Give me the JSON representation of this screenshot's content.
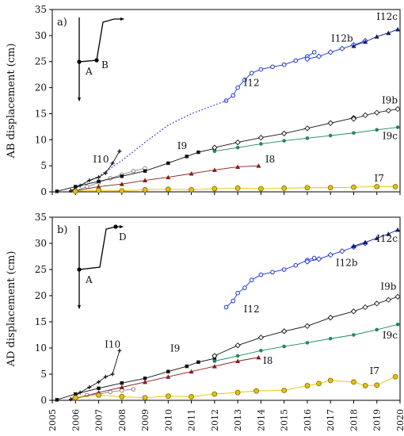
{
  "chart_data": [
    {
      "type": "scatter",
      "panel_label": "a)",
      "ylabel": "AB displacement (cm)",
      "xlim": [
        2005,
        2020
      ],
      "ylim": [
        0,
        35
      ],
      "yticks": [
        0,
        5,
        10,
        15,
        20,
        25,
        30,
        35
      ],
      "inset_labels": [
        "A",
        "B"
      ],
      "series": [
        {
          "name": "I12",
          "color": "#1a2fe0",
          "marker": "open-circle",
          "x": [
            2012.5,
            2012.8,
            2013.0,
            2013.3,
            2013.6,
            2014.0,
            2014.5,
            2015.0,
            2015.5,
            2016.0,
            2016.3
          ],
          "y": [
            17.5,
            18.5,
            20.0,
            21.5,
            22.8,
            23.5,
            24.0,
            24.4,
            25.2,
            26.0,
            26.8
          ]
        },
        {
          "name": "I12b",
          "color": "#1a2fe0",
          "marker": "open-diamond",
          "x": [
            2016.0,
            2016.5,
            2017.0,
            2017.5,
            2018.0,
            2018.5
          ],
          "y": [
            25.5,
            26.0,
            26.8,
            27.5,
            28.2,
            29.0
          ]
        },
        {
          "name": "I12c",
          "color": "#0e1a70",
          "marker": "triangle",
          "x": [
            2018.0,
            2018.5,
            2019.0,
            2019.5,
            2019.9
          ],
          "y": [
            28.0,
            28.8,
            29.8,
            30.5,
            31.2
          ]
        },
        {
          "name": "",
          "color": "#1a2fe0",
          "marker": "dotted",
          "x": [
            2006.0,
            2007.0,
            2008.0,
            2009.0,
            2010.0,
            2011.0,
            2012.5
          ],
          "y": [
            0.8,
            3.0,
            6.0,
            9.5,
            12.8,
            15.0,
            17.5
          ]
        },
        {
          "name": "I10",
          "color": "#111111",
          "marker": "plus",
          "x": [
            2005.8,
            2006.2,
            2006.6,
            2007.0,
            2007.3,
            2007.6,
            2007.9
          ],
          "y": [
            0.2,
            1.2,
            2.2,
            2.8,
            3.6,
            5.5,
            7.8
          ]
        },
        {
          "name": "",
          "color": "#888888",
          "marker": "open-circle",
          "x": [
            2006.0,
            2006.5,
            2007.0,
            2007.5,
            2008.0,
            2008.5,
            2009.0
          ],
          "y": [
            0.2,
            1.0,
            1.8,
            2.6,
            3.3,
            4.0,
            4.5
          ]
        },
        {
          "name": "I9",
          "color": "#111111",
          "marker": "square",
          "x": [
            2005.2,
            2006.0,
            2007.0,
            2008.0,
            2009.0,
            2010.0,
            2010.8,
            2011.3,
            2012.0
          ],
          "y": [
            0.1,
            1.0,
            2.0,
            3.0,
            4.0,
            5.5,
            6.8,
            7.6,
            8.3
          ]
        },
        {
          "name": "",
          "color": "#111111",
          "marker": "open-diamond",
          "x": [
            2012.0,
            2013.0,
            2014.0,
            2015.0,
            2016.0,
            2017.0,
            2018.0
          ],
          "y": [
            8.5,
            9.5,
            10.4,
            11.2,
            12.2,
            13.2,
            14.2
          ]
        },
        {
          "name": "I9b",
          "color": "#222222",
          "marker": "open-diamond",
          "x": [
            2018.0,
            2018.5,
            2019.0,
            2019.5,
            2019.9
          ],
          "y": [
            14.0,
            14.7,
            15.2,
            15.6,
            15.9
          ]
        },
        {
          "name": "I9c",
          "color": "#1e8a5c",
          "marker": "filled-circle",
          "x": [
            2012.0,
            2013.0,
            2014.0,
            2015.0,
            2016.0,
            2017.0,
            2018.0,
            2019.0,
            2019.9
          ],
          "y": [
            7.8,
            8.5,
            9.2,
            9.8,
            10.3,
            10.8,
            11.3,
            11.9,
            12.4
          ]
        },
        {
          "name": "I8",
          "color": "#8b1a1a",
          "marker": "triangle",
          "x": [
            2006.0,
            2007.0,
            2008.0,
            2009.0,
            2010.0,
            2011.0,
            2012.0,
            2013.0,
            2013.9
          ],
          "y": [
            0.2,
            1.0,
            1.5,
            2.2,
            2.8,
            3.5,
            4.2,
            4.8,
            5.0
          ]
        },
        {
          "name": "I7",
          "color": "#e8c000",
          "marker": "yellow-circle",
          "x": [
            2006.0,
            2007.0,
            2008.0,
            2009.0,
            2010.0,
            2011.0,
            2012.0,
            2013.0,
            2014.0,
            2015.0,
            2016.0,
            2017.0,
            2018.0,
            2019.0,
            2019.8
          ],
          "y": [
            0.1,
            0.3,
            0.2,
            0.4,
            0.5,
            0.4,
            0.6,
            0.7,
            0.6,
            0.7,
            0.8,
            0.8,
            0.9,
            1.0,
            1.0
          ]
        }
      ]
    },
    {
      "type": "scatter",
      "panel_label": "b)",
      "ylabel": "AD displacement (cm)",
      "xlim": [
        2005,
        2020
      ],
      "ylim": [
        0,
        35
      ],
      "xticks": [
        2005,
        2006,
        2007,
        2008,
        2009,
        2010,
        2011,
        2012,
        2013,
        2014,
        2015,
        2016,
        2017,
        2018,
        2019,
        2020
      ],
      "yticks": [
        0,
        5,
        10,
        15,
        20,
        25,
        30,
        35
      ],
      "inset_labels": [
        "A",
        "D"
      ],
      "series": [
        {
          "name": "I12",
          "color": "#1a2fe0",
          "marker": "open-circle",
          "x": [
            2012.5,
            2012.8,
            2013.0,
            2013.3,
            2013.6,
            2014.0,
            2014.5,
            2015.0,
            2015.5,
            2016.0,
            2016.3
          ],
          "y": [
            17.8,
            19.0,
            20.5,
            21.5,
            23.0,
            24.0,
            24.5,
            25.0,
            25.8,
            26.8,
            27.2
          ]
        },
        {
          "name": "I12b",
          "color": "#1a2fe0",
          "marker": "open-diamond",
          "x": [
            2016.0,
            2016.5,
            2017.0,
            2017.5,
            2018.0,
            2018.5
          ],
          "y": [
            26.5,
            27.0,
            27.8,
            28.5,
            29.3,
            30.0
          ]
        },
        {
          "name": "I12c",
          "color": "#0e1a70",
          "marker": "triangle",
          "x": [
            2018.0,
            2018.5,
            2019.0,
            2019.5,
            2019.9
          ],
          "y": [
            29.5,
            30.2,
            31.0,
            31.8,
            32.6
          ]
        },
        {
          "name": "I10",
          "color": "#111111",
          "marker": "plus",
          "x": [
            2005.8,
            2006.2,
            2006.6,
            2007.0,
            2007.3,
            2007.6,
            2007.9
          ],
          "y": [
            0.2,
            1.5,
            2.5,
            3.5,
            4.5,
            5.0,
            9.5
          ]
        },
        {
          "name": "",
          "color": "#888888",
          "marker": "open-circle",
          "x": [
            2006.0,
            2006.5,
            2007.0,
            2007.5,
            2008.0,
            2008.5
          ],
          "y": [
            0.5,
            1.0,
            1.2,
            1.6,
            1.9,
            2.1
          ]
        },
        {
          "name": "I9",
          "color": "#111111",
          "marker": "square",
          "x": [
            2005.2,
            2006.0,
            2007.0,
            2008.0,
            2009.0,
            2010.0,
            2010.8,
            2011.3,
            2012.0
          ],
          "y": [
            0.1,
            1.2,
            2.3,
            3.3,
            4.2,
            5.5,
            6.5,
            7.3,
            8.0
          ]
        },
        {
          "name": "",
          "color": "#111111",
          "marker": "open-diamond",
          "x": [
            2012.0,
            2013.0,
            2014.0,
            2015.0,
            2016.0,
            2017.0,
            2018.0
          ],
          "y": [
            8.5,
            10.5,
            12.0,
            13.2,
            14.2,
            15.8,
            17.0
          ]
        },
        {
          "name": "I9b",
          "color": "#222222",
          "marker": "open-diamond",
          "x": [
            2018.0,
            2018.5,
            2019.0,
            2019.5,
            2019.9
          ],
          "y": [
            17.0,
            17.8,
            18.5,
            19.2,
            19.8
          ]
        },
        {
          "name": "I9c",
          "color": "#1e8a5c",
          "marker": "filled-circle",
          "x": [
            2012.0,
            2013.0,
            2014.0,
            2015.0,
            2016.0,
            2017.0,
            2018.0,
            2019.0,
            2019.9
          ],
          "y": [
            7.5,
            8.5,
            9.5,
            10.3,
            11.0,
            11.8,
            12.5,
            13.5,
            14.5
          ]
        },
        {
          "name": "I8",
          "color": "#8b1a1a",
          "marker": "triangle",
          "x": [
            2006.0,
            2007.0,
            2008.0,
            2009.0,
            2010.0,
            2011.0,
            2012.0,
            2013.0,
            2013.9
          ],
          "y": [
            0.3,
            1.5,
            2.5,
            3.5,
            4.5,
            5.5,
            6.5,
            7.5,
            8.2
          ]
        },
        {
          "name": "I7",
          "color": "#e8c000",
          "marker": "yellow-circle",
          "x": [
            2006.0,
            2007.0,
            2008.0,
            2009.0,
            2010.0,
            2011.0,
            2012.0,
            2013.0,
            2013.8,
            2015.0,
            2016.0,
            2016.5,
            2017.0,
            2018.0,
            2018.5,
            2019.0,
            2019.8
          ],
          "y": [
            0.5,
            1.0,
            0.7,
            0.5,
            0.8,
            0.7,
            1.2,
            1.5,
            1.8,
            1.9,
            2.8,
            3.2,
            3.8,
            3.5,
            2.8,
            2.9,
            4.5
          ]
        }
      ]
    }
  ]
}
